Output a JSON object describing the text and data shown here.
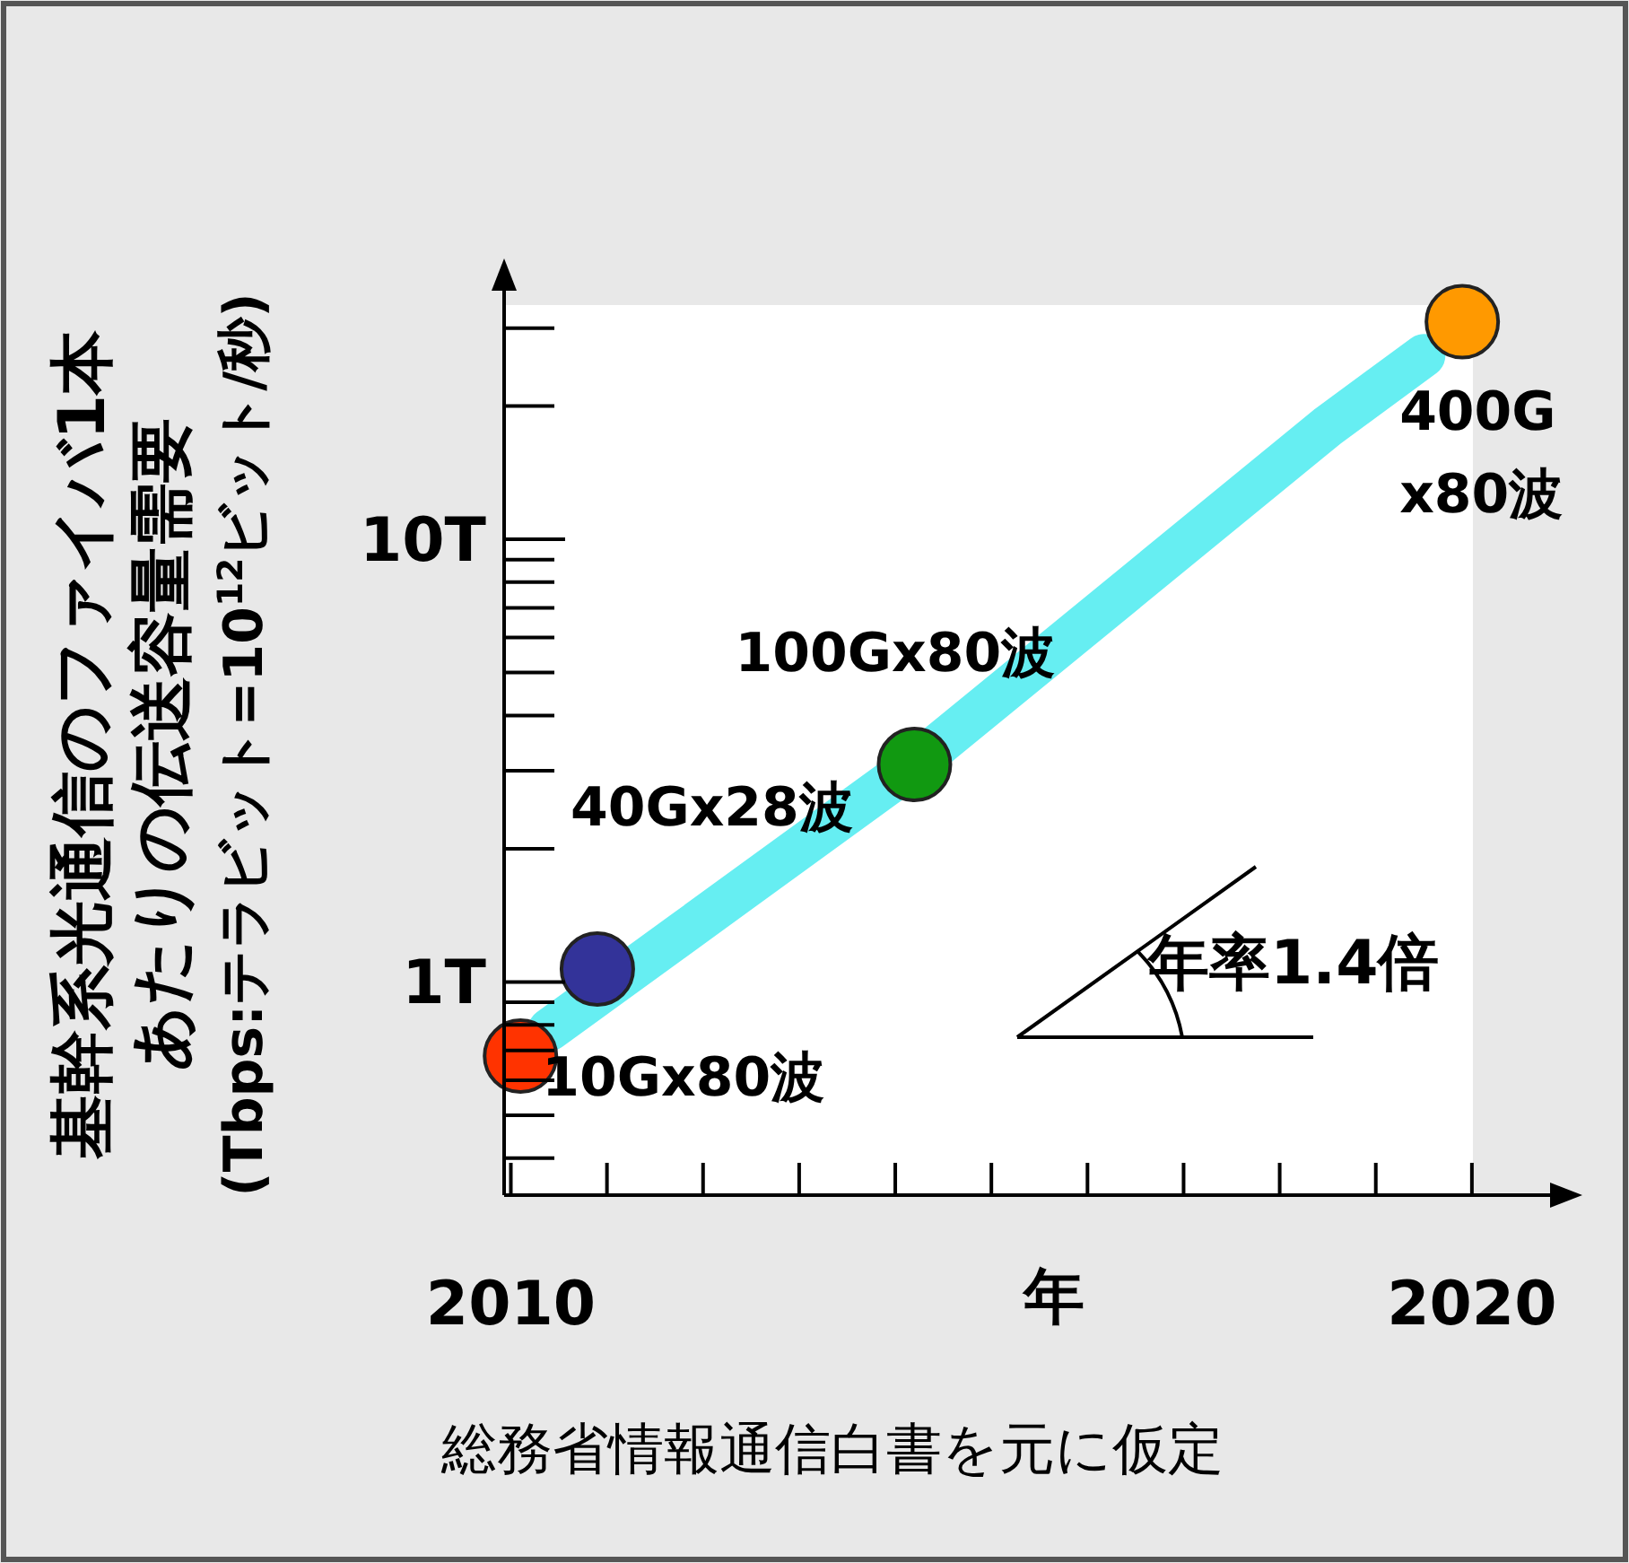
{
  "chart_data": {
    "type": "scatter",
    "xlabel": "年",
    "ylabel": "基幹系光通信のファイバ1本あたりの伝送容量需要(Tbps:テラビット=10$^{12}$ビット/秒)",
    "xlim": [
      2009.93,
      2021
    ],
    "xticks": [
      2010,
      2020
    ],
    "ylim": [
      0.33,
      40
    ],
    "log": "y",
    "yticks": [
      {
        "value": 1,
        "label": "1T"
      },
      {
        "value": 10,
        "label": "10T"
      }
    ],
    "grid": false,
    "marker": "circle",
    "series": [
      {
        "type": "line",
        "marker": "none",
        "color": "#66eef2",
        "x": [
          2010.4,
          2014.2,
          2018.5,
          2019.5
        ],
        "values": [
          0.78,
          3.1,
          18,
          26
        ]
      },
      {
        "x": [
          2010.1,
          2010.9,
          2014.2,
          2019.9
        ],
        "values": [
          0.68,
          1.07,
          3.1,
          31
        ],
        "colors": [
          "#ff3300",
          "#333399",
          "#119911",
          "#ff9900"
        ]
      }
    ],
    "annotations": [
      {
        "text": "10Gx80波",
        "x": 2010.1,
        "y": 0.68
      },
      {
        "text": "40Gx28波",
        "x": 2010.9,
        "y": 1.07
      },
      {
        "text": "100Gx80波",
        "x": 2014.2,
        "y": 3.1
      },
      {
        "text": "400G\nx80波",
        "x": 2019.9,
        "y": 31
      },
      "年率1.4倍",
      "総務省情報通信白書を元に仮定"
    ]
  }
}
